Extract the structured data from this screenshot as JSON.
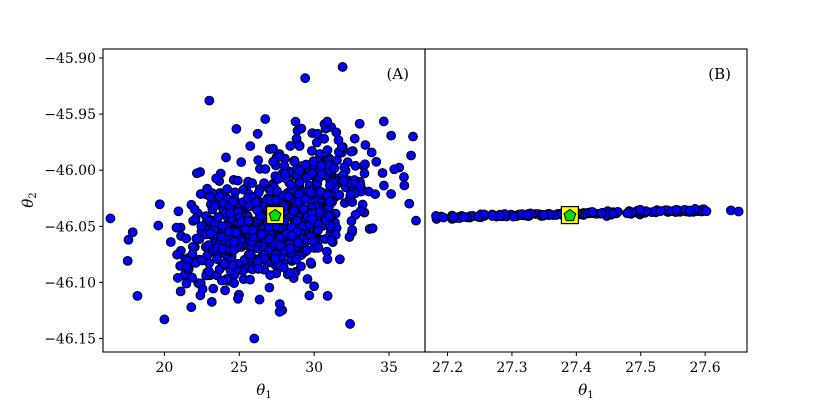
{
  "chart_data": [
    {
      "type": "scatter",
      "panel_label": "(A)",
      "xlabel": "θ1",
      "ylabel": "θ2",
      "xlim": [
        15.9,
        37.4
      ],
      "ylim": [
        -46.162,
        -45.892
      ],
      "xticks": [
        20,
        25,
        30,
        35
      ],
      "yticks": [
        -45.9,
        -45.95,
        -46.0,
        -46.05,
        -46.1,
        -46.15
      ],
      "xtick_labels": [
        "20",
        "25",
        "30",
        "35"
      ],
      "ytick_labels": [
        "−45.90",
        "−45.95",
        "−46.00",
        "−46.05",
        "−46.10",
        "−46.15"
      ],
      "grid": false,
      "sample_count": 800,
      "sample_center": [
        27.4,
        -46.04
      ],
      "sample_std": [
        3.0,
        0.032
      ],
      "sample_correlation": 0.5,
      "sample_seed": 7,
      "outlier_points": [
        [
          31.9,
          -45.908
        ],
        [
          29.4,
          -45.918
        ],
        [
          23.0,
          -45.938
        ],
        [
          26.0,
          -46.15
        ],
        [
          32.4,
          -46.137
        ],
        [
          16.4,
          -46.043
        ],
        [
          17.6,
          -46.062
        ],
        [
          36.6,
          -45.97
        ],
        [
          36.8,
          -46.045
        ],
        [
          18.2,
          -46.112
        ],
        [
          20.0,
          -46.133
        ],
        [
          30.9,
          -46.112
        ]
      ],
      "highlight": {
        "x": 27.39,
        "y": -46.04
      },
      "point_color": "#0000ff",
      "point_edge": "#000000",
      "marker_square_fill": "#ffff00",
      "marker_pentagon_fill": "#00dd00"
    },
    {
      "type": "scatter",
      "panel_label": "(B)",
      "xlabel": "θ1",
      "xlim": [
        27.165,
        27.665
      ],
      "ylim": [
        -46.162,
        -45.892
      ],
      "xticks": [
        27.2,
        27.3,
        27.4,
        27.5,
        27.6
      ],
      "xtick_labels": [
        "27.2",
        "27.3",
        "27.4",
        "27.5",
        "27.6"
      ],
      "grid": false,
      "sample_count": 180,
      "x_range": [
        27.18,
        27.605
      ],
      "line_start": [
        27.18,
        -46.0425
      ],
      "line_end": [
        27.61,
        -46.0355
      ],
      "line_scatter_y": 0.0012,
      "sample_seed": 11,
      "extra_points": [
        [
          27.64,
          -46.0358
        ],
        [
          27.652,
          -46.0368
        ]
      ],
      "highlight": {
        "x": 27.39,
        "y": -46.04
      },
      "point_color": "#0000ff",
      "point_edge": "#000000",
      "marker_square_fill": "#ffff00",
      "marker_pentagon_fill": "#00dd00"
    }
  ]
}
